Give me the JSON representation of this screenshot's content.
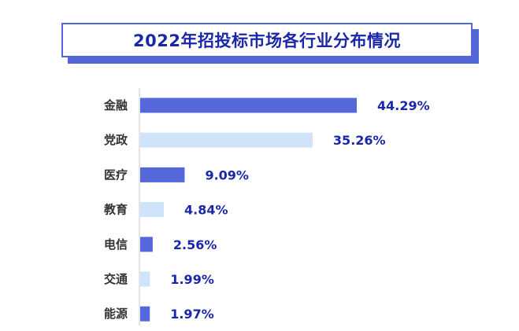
{
  "chart_data": {
    "type": "bar",
    "orientation": "horizontal",
    "title": "2022年招投标市场各行业分布情况",
    "categories": [
      "金融",
      "党政",
      "医疗",
      "教育",
      "电信",
      "交通",
      "能源"
    ],
    "values": [
      44.29,
      35.26,
      9.09,
      4.84,
      2.56,
      1.99,
      1.97
    ],
    "data_labels": [
      "44.29%",
      "35.26%",
      "9.09%",
      "4.84%",
      "2.56%",
      "1.99%",
      "1.97%"
    ],
    "xlim": [
      0,
      44.29
    ],
    "grid": false,
    "legend": "none",
    "colors": {
      "bar_dark": "#5468db",
      "bar_light": "#cfe3fa",
      "label": "#1a27a8",
      "axis": "#c8c8c8"
    }
  }
}
